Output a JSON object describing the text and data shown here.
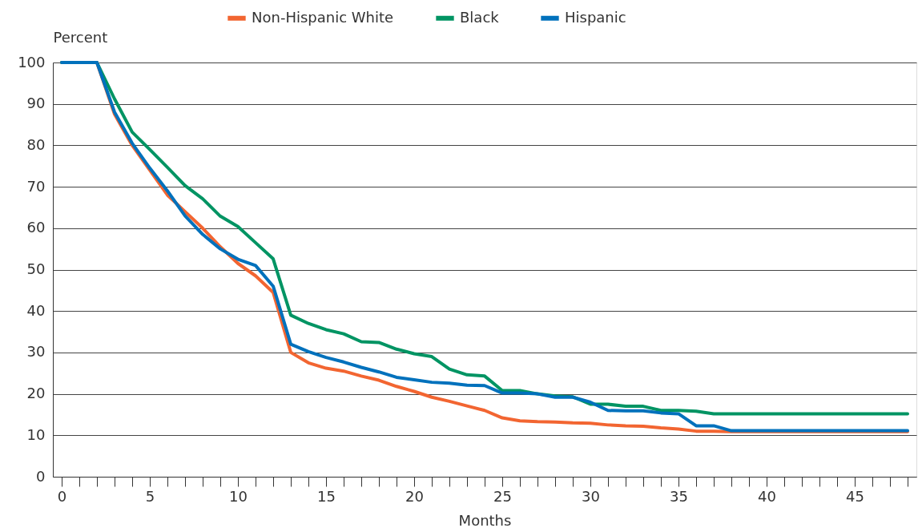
{
  "chart_data": {
    "type": "line",
    "xlabel": "Months",
    "ylabel": "Percent",
    "legend": "top",
    "grid": "y",
    "line_style": "solid",
    "marker": "none",
    "x": [
      0,
      1,
      2,
      3,
      4,
      5,
      6,
      7,
      8,
      9,
      10,
      11,
      12,
      13,
      14,
      15,
      16,
      17,
      18,
      19,
      20,
      21,
      22,
      23,
      24,
      25,
      26,
      27,
      28,
      29,
      30,
      31,
      32,
      33,
      34,
      35,
      36,
      37,
      38,
      39,
      40,
      41,
      42,
      43,
      44,
      45,
      46,
      47,
      48
    ],
    "xlim": [
      -0.5,
      48.5
    ],
    "xticks": [
      0,
      {
        "value": 1,
        "label": null
      },
      {
        "value": 2,
        "label": null
      },
      {
        "value": 3,
        "label": null
      },
      {
        "value": 4,
        "label": null
      },
      5,
      {
        "value": 6,
        "label": null
      },
      {
        "value": 7,
        "label": null
      },
      {
        "value": 8,
        "label": null
      },
      {
        "value": 9,
        "label": null
      },
      10,
      {
        "value": 11,
        "label": null
      },
      {
        "value": 12,
        "label": null
      },
      {
        "value": 13,
        "label": null
      },
      {
        "value": 14,
        "label": null
      },
      15,
      {
        "value": 16,
        "label": null
      },
      {
        "value": 17,
        "label": null
      },
      {
        "value": 18,
        "label": null
      },
      {
        "value": 19,
        "label": null
      },
      20,
      {
        "value": 21,
        "label": null
      },
      {
        "value": 22,
        "label": null
      },
      {
        "value": 23,
        "label": null
      },
      {
        "value": 24,
        "label": null
      },
      25,
      {
        "value": 26,
        "label": null
      },
      {
        "value": 27,
        "label": null
      },
      {
        "value": 28,
        "label": null
      },
      {
        "value": 29,
        "label": null
      },
      30,
      {
        "value": 31,
        "label": null
      },
      {
        "value": 32,
        "label": null
      },
      {
        "value": 33,
        "label": null
      },
      {
        "value": 34,
        "label": null
      },
      35,
      {
        "value": 36,
        "label": null
      },
      {
        "value": 37,
        "label": null
      },
      {
        "value": 38,
        "label": null
      },
      {
        "value": 39,
        "label": null
      },
      40,
      {
        "value": 41,
        "label": null
      },
      {
        "value": 42,
        "label": null
      },
      {
        "value": 43,
        "label": null
      },
      {
        "value": 44,
        "label": null
      },
      45,
      {
        "value": 46,
        "label": null
      },
      {
        "value": 47,
        "label": null
      },
      {
        "value": 48,
        "label": null
      }
    ],
    "ylim": [
      0,
      100
    ],
    "yticks": [
      0,
      10,
      20,
      30,
      40,
      50,
      60,
      70,
      80,
      90,
      100
    ],
    "series": [
      {
        "name": "Non-Hispanic White",
        "color": "#f26531",
        "values": [
          100,
          100,
          100,
          87.5,
          80,
          74,
          68,
          64,
          60,
          55.5,
          51.5,
          48.5,
          44.5,
          30,
          27.5,
          26.2,
          25.5,
          24.3,
          23.3,
          21.8,
          20.6,
          19.2,
          18.2,
          17.1,
          16,
          14.2,
          13.5,
          13.3,
          13.2,
          13,
          12.9,
          12.5,
          12.3,
          12.2,
          11.8,
          11.5,
          11,
          11,
          10.9,
          10.9,
          10.9,
          10.9,
          10.9,
          10.9,
          10.9,
          10.9,
          10.9,
          10.9,
          10.9
        ]
      },
      {
        "name": "Black",
        "color": "#009463",
        "values": [
          100,
          100,
          100,
          91.2,
          83.2,
          79,
          74.7,
          70.3,
          67.1,
          62.9,
          60.4,
          56.5,
          52.6,
          39,
          37,
          35.5,
          34.5,
          32.6,
          32.4,
          30.8,
          29.7,
          29,
          26,
          24.6,
          24.3,
          20.8,
          20.8,
          20,
          19.5,
          19.3,
          17.5,
          17.5,
          17,
          17,
          16,
          16,
          15.8,
          15.2,
          15.2,
          15.2,
          15.2,
          15.2,
          15.2,
          15.2,
          15.2,
          15.2,
          15.2,
          15.2,
          15.2
        ]
      },
      {
        "name": "Hispanic",
        "color": "#0071bc",
        "values": [
          100,
          100,
          100,
          88,
          80.5,
          74.5,
          69,
          63,
          58.5,
          55,
          52.5,
          51,
          46,
          32,
          30.2,
          28.8,
          27.7,
          26.4,
          25.3,
          24,
          23.4,
          22.8,
          22.6,
          22.1,
          22,
          20.2,
          20.2,
          20,
          19.2,
          19.2,
          18,
          16,
          15.9,
          15.9,
          15.4,
          15.2,
          12.3,
          12.3,
          11.1,
          11.1,
          11.1,
          11.1,
          11.1,
          11.1,
          11.1,
          11.1,
          11.1,
          11.1,
          11.1
        ]
      }
    ]
  }
}
